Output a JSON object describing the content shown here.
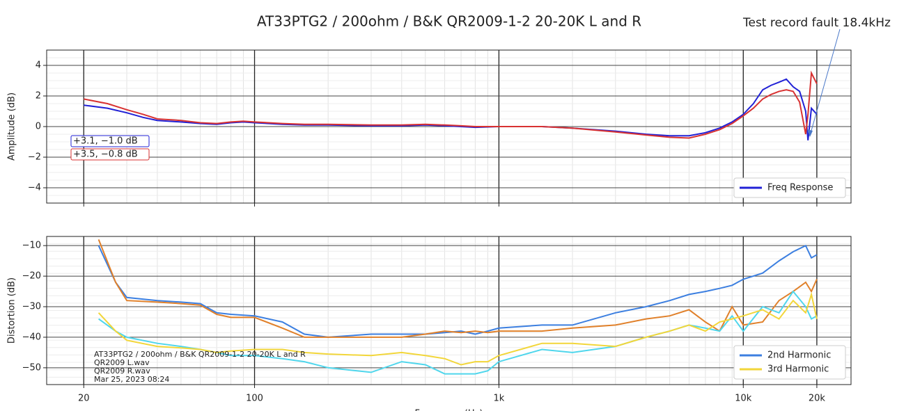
{
  "chart_data": [
    {
      "type": "line",
      "title": "AT33PTG2  / 200ohm / B&K QR2009-1-2 20-20K  L and R",
      "ylabel": "Amplitude (dB)",
      "xscale": "log",
      "grid": true,
      "minor_grid": true,
      "legend": "lower right",
      "xlim": [
        14.1,
        27600
      ],
      "ylim": [
        -5,
        5
      ],
      "xticks": [
        20,
        100,
        {
          "value": 1000,
          "label": "1k"
        },
        {
          "value": 10000,
          "label": "10k"
        },
        {
          "value": 20000,
          "label": "20k"
        }
      ],
      "yticks": [
        {
          "value": -4,
          "label": "−4"
        },
        {
          "value": -2,
          "label": "−2"
        },
        0,
        2,
        4
      ],
      "x": [
        20,
        25,
        30,
        35,
        40,
        50,
        60,
        70,
        80,
        90,
        100,
        130,
        160,
        200,
        300,
        400,
        500,
        600,
        700,
        800,
        1000,
        1500,
        2000,
        3000,
        4000,
        5000,
        6000,
        7000,
        8000,
        9000,
        10000,
        11000,
        12000,
        13000,
        14000,
        15000,
        16000,
        17000,
        18000,
        18400,
        19000,
        20000
      ],
      "series": [
        {
          "name": "Freq Response",
          "color": "#2121d6",
          "values": [
            1.4,
            1.2,
            0.9,
            0.6,
            0.4,
            0.3,
            0.2,
            0.15,
            0.25,
            0.3,
            0.25,
            0.15,
            0.1,
            0.1,
            0.05,
            0.05,
            0.1,
            0.05,
            0.0,
            -0.05,
            0.0,
            0.0,
            -0.1,
            -0.3,
            -0.5,
            -0.6,
            -0.6,
            -0.4,
            -0.1,
            0.3,
            0.8,
            1.5,
            2.4,
            2.7,
            2.9,
            3.1,
            2.6,
            2.3,
            1.0,
            -0.9,
            1.2,
            0.8
          ]
        },
        {
          "color": "#d83232",
          "values": [
            1.8,
            1.5,
            1.1,
            0.8,
            0.5,
            0.4,
            0.25,
            0.2,
            0.3,
            0.35,
            0.3,
            0.2,
            0.15,
            0.15,
            0.1,
            0.1,
            0.15,
            0.1,
            0.05,
            0.0,
            0.0,
            0.0,
            -0.1,
            -0.35,
            -0.55,
            -0.7,
            -0.75,
            -0.5,
            -0.2,
            0.2,
            0.7,
            1.2,
            1.8,
            2.1,
            2.3,
            2.4,
            2.3,
            1.6,
            -0.5,
            0.8,
            3.5,
            2.8
          ]
        }
      ],
      "annotations": [
        {
          "text": "+3.1, −1.0 dB",
          "color": "#2121d6"
        },
        {
          "text": "+3.5, −0.8 dB",
          "color": "#d83232"
        },
        {
          "text": "Test record fault 18.4kHz",
          "color": "#222222"
        }
      ]
    },
    {
      "type": "line",
      "ylabel": "Distortion (dB)",
      "xlabel": "Frequency (Hz)",
      "xscale": "log",
      "grid": true,
      "minor_grid": true,
      "legend": "lower right",
      "xlim": [
        14.1,
        27600
      ],
      "ylim": [
        -55.5,
        -7
      ],
      "xticks": [
        20,
        100,
        {
          "value": 1000,
          "label": "1k"
        },
        {
          "value": 10000,
          "label": "10k"
        },
        {
          "value": 20000,
          "label": "20k"
        }
      ],
      "yticks": [
        {
          "value": -50,
          "label": "−50"
        },
        {
          "value": -40,
          "label": "−40"
        },
        {
          "value": -30,
          "label": "−30"
        },
        {
          "value": -20,
          "label": "−20"
        },
        {
          "value": -10,
          "label": "−10"
        }
      ],
      "x": [
        23,
        27,
        30,
        40,
        50,
        60,
        70,
        80,
        100,
        130,
        160,
        200,
        300,
        400,
        500,
        600,
        700,
        800,
        900,
        1000,
        1500,
        2000,
        3000,
        4000,
        5000,
        6000,
        7000,
        8000,
        9000,
        10000,
        12000,
        14000,
        16000,
        18000,
        19000,
        20000
      ],
      "series": [
        {
          "name": "2nd Harmonic",
          "color": "#3c7fe0",
          "values": [
            -10,
            -22,
            -27,
            -28,
            -28.5,
            -29,
            -32,
            -32.5,
            -33,
            -35,
            -39,
            -40,
            -39,
            -39,
            -39,
            -38.5,
            -38,
            -39,
            -38,
            -37,
            -36,
            -36,
            -32,
            -30,
            -28,
            -26,
            -25,
            -24,
            -23,
            -21,
            -19,
            -15,
            -12,
            -10,
            -14,
            -13
          ]
        },
        {
          "color": "#e0802a",
          "values": [
            -8,
            -22,
            -28,
            -28.5,
            -29,
            -29.5,
            -32.5,
            -33.5,
            -33.5,
            -37,
            -40,
            -40,
            -40,
            -40,
            -39,
            -38,
            -38.5,
            -38,
            -38.5,
            -38,
            -38,
            -37,
            -36,
            -34,
            -33,
            -31,
            -35,
            -38,
            -30,
            -36,
            -35,
            -28,
            -25,
            -22,
            -25,
            -21
          ]
        },
        {
          "color": "#4fd6ec",
          "values": [
            -34,
            -38,
            -40,
            -42,
            -43,
            -44,
            -45,
            -46,
            -46,
            -47,
            -48,
            -50,
            -51.5,
            -48,
            -49,
            -52,
            -52,
            -52,
            -51,
            -48,
            -44,
            -45,
            -43,
            -40,
            -38,
            -36,
            -37,
            -38,
            -33,
            -38,
            -30,
            -32,
            -25,
            -30,
            -34,
            -33
          ]
        },
        {
          "name": "3rd Harmonic",
          "color": "#f2d63a",
          "values": [
            -32,
            -38,
            -41,
            -43,
            -43.5,
            -44,
            -45,
            -44.5,
            -44,
            -44,
            -45,
            -45.5,
            -46,
            -45,
            -46,
            -47,
            -49,
            -48,
            -48,
            -46,
            -42,
            -42,
            -43,
            -40,
            -38,
            -36,
            -38,
            -35,
            -34,
            -33,
            -31,
            -34,
            -28,
            -32,
            -26,
            -34
          ]
        }
      ],
      "note": [
        "AT33PTG2  / 200ohm / B&K QR2009-1-2 20-20K  L and R",
        "QR2009 L.wav",
        "QR2009 R.wav",
        "Mar 25, 2023 08:24"
      ]
    }
  ]
}
